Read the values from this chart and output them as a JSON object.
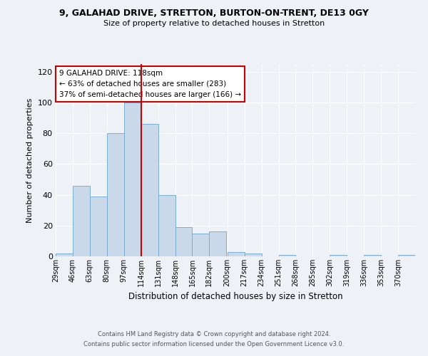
{
  "title1": "9, GALAHAD DRIVE, STRETTON, BURTON-ON-TRENT, DE13 0GY",
  "title2": "Size of property relative to detached houses in Stretton",
  "xlabel": "Distribution of detached houses by size in Stretton",
  "ylabel": "Number of detached properties",
  "bin_labels": [
    "29sqm",
    "46sqm",
    "63sqm",
    "80sqm",
    "97sqm",
    "114sqm",
    "131sqm",
    "148sqm",
    "165sqm",
    "182sqm",
    "200sqm",
    "217sqm",
    "234sqm",
    "251sqm",
    "268sqm",
    "285sqm",
    "302sqm",
    "319sqm",
    "336sqm",
    "353sqm",
    "370sqm"
  ],
  "bin_edges": [
    29,
    46,
    63,
    80,
    97,
    114,
    131,
    148,
    165,
    182,
    200,
    217,
    234,
    251,
    268,
    285,
    302,
    319,
    336,
    353,
    370
  ],
  "bar_heights": [
    2,
    46,
    39,
    80,
    100,
    86,
    40,
    19,
    15,
    16,
    3,
    2,
    0,
    1,
    0,
    0,
    1,
    0,
    1,
    0,
    1
  ],
  "bar_color": "#c9d9ea",
  "bar_edgecolor": "#7bafd4",
  "vline_x": 114,
  "vline_color": "#cc0000",
  "ylim": [
    0,
    125
  ],
  "yticks": [
    0,
    20,
    40,
    60,
    80,
    100,
    120
  ],
  "annotation_line1": "9 GALAHAD DRIVE: 118sqm",
  "annotation_line2": "← 63% of detached houses are smaller (283)",
  "annotation_line3": "37% of semi-detached houses are larger (166) →",
  "annotation_box_color": "#ffffff",
  "annotation_box_edgecolor": "#cc0000",
  "footer_line1": "Contains HM Land Registry data © Crown copyright and database right 2024.",
  "footer_line2": "Contains public sector information licensed under the Open Government Licence v3.0.",
  "background_color": "#eef2f7",
  "grid_color": "#ffffff"
}
